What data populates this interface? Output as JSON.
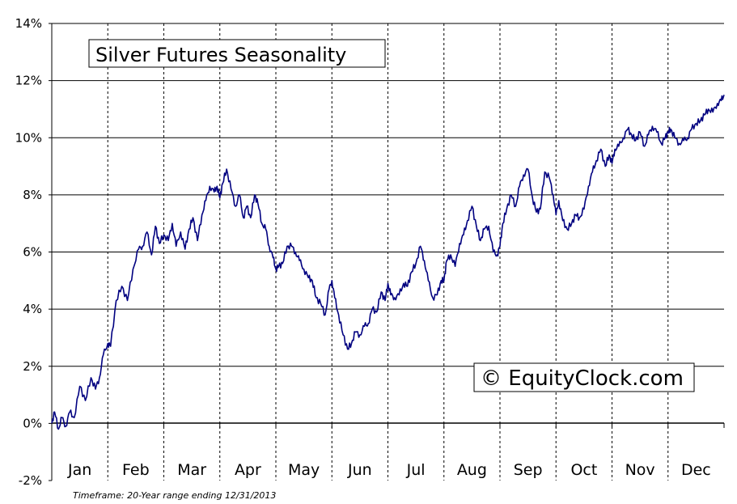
{
  "chart_data": {
    "type": "line",
    "title": "Silver Futures Seasonality",
    "watermark": "© EquityClock.com",
    "footnote": "Timeframe: 20-Year range ending 12/31/2013",
    "ylim": [
      -2,
      14
    ],
    "yticks": [
      "-2%",
      "0%",
      "2%",
      "4%",
      "6%",
      "8%",
      "10%",
      "12%",
      "14%"
    ],
    "categories": [
      "Jan",
      "Feb",
      "Mar",
      "Apr",
      "May",
      "Jun",
      "Jul",
      "Aug",
      "Sep",
      "Oct",
      "Nov",
      "Dec"
    ],
    "grid": true,
    "line_color": "#000080",
    "series": [
      {
        "x": [
          0.0,
          0.05,
          0.12,
          0.18,
          0.25,
          0.32,
          0.4,
          0.5,
          0.6,
          0.7,
          0.78,
          0.85,
          0.92,
          1.0,
          1.05,
          1.15,
          1.25,
          1.35,
          1.45,
          1.55,
          1.62,
          1.7,
          1.78,
          1.85,
          1.92,
          2.0,
          2.08,
          2.15,
          2.22,
          2.3,
          2.38,
          2.45,
          2.52,
          2.6,
          2.68,
          2.75,
          2.82,
          2.9,
          2.95,
          3.0,
          3.05,
          3.12,
          3.2,
          3.28,
          3.35,
          3.42,
          3.48,
          3.55,
          3.62,
          3.68,
          3.75,
          3.82,
          3.88,
          3.95,
          4.0,
          4.05,
          4.12,
          4.2,
          4.28,
          4.35,
          4.42,
          4.5,
          4.58,
          4.65,
          4.72,
          4.8,
          4.88,
          4.95,
          5.0,
          5.05,
          5.12,
          5.2,
          5.28,
          5.35,
          5.42,
          5.5,
          5.58,
          5.65,
          5.72,
          5.8,
          5.88,
          5.95,
          6.0,
          6.05,
          6.12,
          6.2,
          6.28,
          6.35,
          6.42,
          6.5,
          6.58,
          6.65,
          6.72,
          6.8,
          6.88,
          6.95,
          7.0,
          7.05,
          7.12,
          7.2,
          7.28,
          7.35,
          7.42,
          7.5,
          7.58,
          7.65,
          7.72,
          7.8,
          7.88,
          7.95,
          8.0,
          8.05,
          8.12,
          8.2,
          8.28,
          8.35,
          8.42,
          8.5,
          8.58,
          8.65,
          8.72,
          8.8,
          8.88,
          8.95,
          9.0,
          9.05,
          9.12,
          9.2,
          9.28,
          9.35,
          9.42,
          9.5,
          9.58,
          9.65,
          9.72,
          9.8,
          9.88,
          9.95,
          10.0,
          10.05,
          10.12,
          10.2,
          10.28,
          10.35,
          10.42,
          10.5,
          10.58,
          10.65,
          10.72,
          10.8,
          10.88,
          10.95,
          11.0,
          11.05,
          11.12,
          11.2,
          11.28,
          11.35,
          11.42,
          11.5,
          11.58,
          11.65,
          11.72,
          11.8,
          11.88,
          11.95,
          12.0
        ],
        "values": [
          0.0,
          0.4,
          -0.2,
          0.2,
          -0.1,
          0.4,
          0.2,
          1.3,
          0.8,
          1.6,
          1.2,
          1.6,
          2.4,
          2.8,
          2.7,
          4.3,
          4.8,
          4.3,
          5.4,
          6.1,
          6.2,
          6.7,
          5.9,
          6.9,
          6.3,
          6.6,
          6.4,
          7.0,
          6.2,
          6.7,
          6.1,
          6.8,
          7.2,
          6.4,
          7.3,
          7.8,
          8.3,
          8.1,
          8.3,
          7.9,
          8.4,
          8.9,
          8.2,
          7.6,
          8.0,
          7.2,
          7.6,
          7.2,
          8.0,
          7.7,
          7.0,
          6.8,
          6.2,
          5.8,
          5.4,
          5.5,
          5.6,
          6.2,
          6.2,
          6.0,
          5.7,
          5.4,
          5.1,
          5.0,
          4.4,
          4.2,
          3.8,
          4.7,
          5.0,
          4.4,
          3.8,
          3.1,
          2.6,
          2.8,
          3.2,
          3.1,
          3.4,
          3.5,
          4.0,
          3.9,
          4.6,
          4.3,
          4.9,
          4.5,
          4.4,
          4.5,
          4.9,
          4.8,
          5.3,
          5.6,
          6.2,
          5.7,
          5.0,
          4.4,
          4.5,
          5.0,
          5.0,
          5.7,
          5.9,
          5.5,
          6.3,
          6.6,
          7.1,
          7.6,
          6.9,
          6.4,
          6.8,
          6.9,
          6.0,
          5.9,
          6.2,
          7.0,
          7.5,
          8.0,
          7.6,
          8.3,
          8.7,
          8.9,
          7.9,
          7.4,
          7.5,
          8.8,
          8.6,
          8.0,
          7.3,
          7.8,
          7.1,
          6.8,
          7.0,
          7.3,
          7.2,
          7.5,
          8.3,
          8.8,
          9.2,
          9.6,
          9.0,
          9.4,
          9.1,
          9.6,
          9.7,
          10.0,
          10.3,
          10.1,
          9.9,
          10.2,
          9.7,
          10.1,
          10.4,
          10.2,
          9.8,
          10.0,
          10.2,
          10.3,
          10.0,
          9.8,
          9.9,
          10.0,
          10.3,
          10.5,
          10.6,
          10.8,
          11.0,
          10.9,
          11.2,
          11.3,
          11.5
        ]
      }
    ]
  }
}
